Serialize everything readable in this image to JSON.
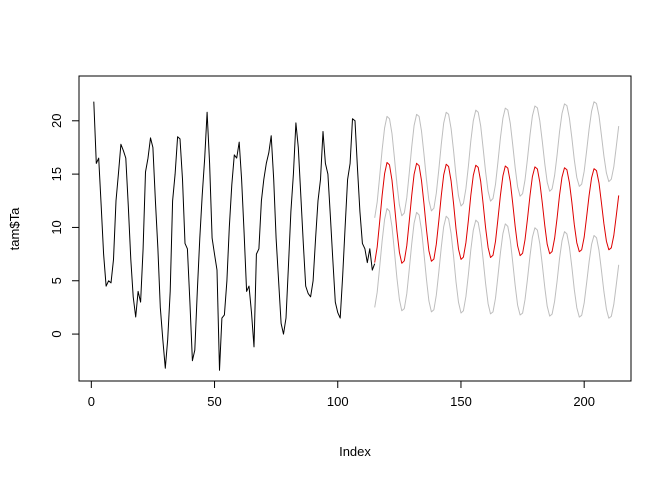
{
  "chart_data": {
    "type": "line",
    "title": "",
    "xlabel": "Index",
    "ylabel": "tam$Ta",
    "xlim": [
      -5,
      219
    ],
    "ylim": [
      -4.4,
      24.2
    ],
    "x_ticks": [
      0,
      50,
      100,
      150,
      200
    ],
    "y_ticks": [
      0,
      5,
      10,
      15,
      20
    ],
    "grid": false,
    "legend": "none",
    "series": [
      {
        "color": "#000000",
        "x": [
          1,
          2,
          3,
          4,
          5,
          6,
          7,
          8,
          9,
          10,
          11,
          12,
          13,
          14,
          15,
          16,
          17,
          18,
          19,
          20,
          21,
          22,
          23,
          24,
          25,
          26,
          27,
          28,
          29,
          30,
          31,
          32,
          33,
          34,
          35,
          36,
          37,
          38,
          39,
          40,
          41,
          42,
          43,
          44,
          45,
          46,
          47,
          48,
          49,
          50,
          51,
          52,
          53,
          54,
          55,
          56,
          57,
          58,
          59,
          60,
          61,
          62,
          63,
          64,
          65,
          66,
          67,
          68,
          69,
          70,
          71,
          72,
          73,
          74,
          75,
          76,
          77,
          78,
          79,
          80,
          81,
          82,
          83,
          84,
          85,
          86,
          87,
          88,
          89,
          90,
          91,
          92,
          93,
          94,
          95,
          96,
          97,
          98,
          99,
          100,
          101,
          102,
          103,
          104,
          105,
          106,
          107,
          108,
          109,
          110,
          111,
          112,
          113,
          114,
          115
        ],
        "values": [
          21.8,
          16.0,
          16.5,
          12.0,
          7.5,
          4.5,
          5.0,
          4.8,
          7.0,
          12.5,
          15.0,
          17.8,
          17.2,
          16.5,
          12.0,
          7.0,
          3.5,
          1.6,
          4.0,
          3.0,
          8.0,
          15.2,
          16.5,
          18.4,
          17.5,
          12.5,
          8.0,
          2.5,
          -0.5,
          -3.2,
          -0.5,
          4.0,
          12.5,
          15.0,
          18.5,
          18.3,
          14.5,
          8.5,
          8.0,
          3.0,
          -2.5,
          -1.5,
          4.0,
          9.0,
          13.0,
          16.5,
          20.8,
          16.0,
          9.0,
          7.5,
          6.0,
          -3.4,
          1.5,
          1.8,
          5.0,
          10.0,
          14.0,
          16.8,
          16.5,
          18.0,
          14.5,
          9.5,
          4.0,
          4.5,
          2.0,
          -1.2,
          7.5,
          8.0,
          12.5,
          14.5,
          16.0,
          17.0,
          18.6,
          14.5,
          9.0,
          5.0,
          1.0,
          0.0,
          1.5,
          6.5,
          11.5,
          15.0,
          19.8,
          17.5,
          13.0,
          8.5,
          4.5,
          3.8,
          3.5,
          5.0,
          9.0,
          12.5,
          14.5,
          19.0,
          16.0,
          15.0,
          11.0,
          7.0,
          3.0,
          2.0,
          1.5,
          5.5,
          10.0,
          14.5,
          16.0,
          20.2,
          20.0,
          15.5,
          11.5,
          8.5,
          8.0,
          6.7,
          8.0,
          6.0,
          6.6
        ]
      },
      {
        "color": "#dd0000",
        "x": "115-214",
        "values": []
      },
      {
        "color": "#bebebe",
        "x": "115-214",
        "values": []
      },
      {
        "color": "#bebebe",
        "x": "115-214",
        "values": []
      }
    ]
  }
}
